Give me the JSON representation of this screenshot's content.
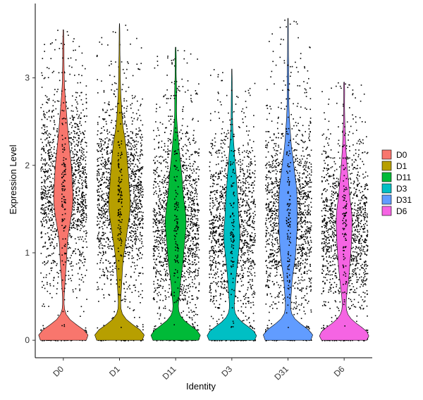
{
  "chart_data": {
    "type": "violin",
    "xlabel": "Identity",
    "ylabel": "Expression Level",
    "ylim": [
      -0.2,
      3.85
    ],
    "yticks": [
      0,
      1,
      2,
      3
    ],
    "grid": false,
    "legend_position": "right",
    "categories": [
      "D0",
      "D1",
      "D11",
      "D3",
      "D31",
      "D6"
    ],
    "series": [
      {
        "name": "D0",
        "color": "#F8766D",
        "max": 3.55,
        "upper_median_shape": "wide",
        "zero_fraction": 0.35
      },
      {
        "name": "D1",
        "color": "#B79F00",
        "max": 3.62,
        "upper_median_shape": "medium",
        "zero_fraction": 0.33
      },
      {
        "name": "D11",
        "color": "#00BA38",
        "max": 3.35,
        "upper_median_shape": "wide",
        "zero_fraction": 0.3
      },
      {
        "name": "D3",
        "color": "#00BFC4",
        "max": 3.1,
        "upper_median_shape": "narrow",
        "zero_fraction": 0.38
      },
      {
        "name": "D31",
        "color": "#619CFF",
        "max": 3.68,
        "upper_median_shape": "narrow",
        "zero_fraction": 0.32
      },
      {
        "name": "D6",
        "color": "#F564E3",
        "max": 2.95,
        "upper_median_shape": "medium",
        "zero_fraction": 0.4
      }
    ],
    "legend": {
      "entries": [
        "D0",
        "D1",
        "D11",
        "D3",
        "D31",
        "D6"
      ]
    }
  }
}
